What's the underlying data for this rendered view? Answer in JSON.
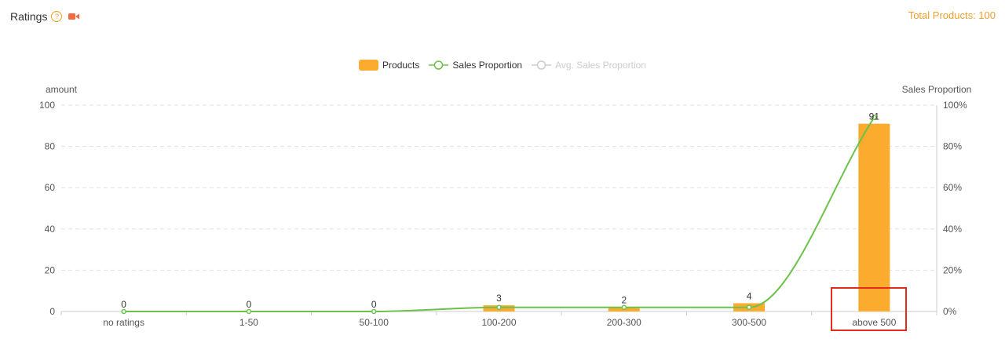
{
  "header": {
    "title": "Ratings",
    "help_icon": "question-circle-icon",
    "help_glyph": "?",
    "video_icon": "video-camera-icon",
    "total_label": "Total Products: 100"
  },
  "colors": {
    "bar": "#fbab2e",
    "line": "#6cc24a",
    "avg_line": "#cccccc",
    "accent": "#f0a030",
    "highlight": "#e32b1e"
  },
  "legend": [
    {
      "label": "Products",
      "kind": "bar",
      "active": true
    },
    {
      "label": "Sales Proportion",
      "kind": "line",
      "active": true
    },
    {
      "label": "Avg. Sales Proportion",
      "kind": "line",
      "active": false
    }
  ],
  "chart_data": {
    "type": "bar",
    "categories": [
      "no ratings",
      "1-50",
      "50-100",
      "100-200",
      "200-300",
      "300-500",
      "above 500"
    ],
    "series": [
      {
        "name": "Products",
        "type": "bar",
        "axis": "left",
        "values": [
          0,
          0,
          0,
          3,
          2,
          4,
          91
        ]
      },
      {
        "name": "Sales Proportion",
        "type": "line",
        "axis": "right",
        "smooth": true,
        "values": [
          0,
          0,
          0,
          2,
          2,
          2,
          94
        ]
      }
    ],
    "ylabel": "amount",
    "ylabel_right": "Sales Proportion",
    "ylim": [
      0,
      100
    ],
    "yticks": [
      "0",
      "20",
      "40",
      "60",
      "80",
      "100"
    ],
    "ylim_right": [
      0,
      100
    ],
    "yticks_right": [
      "0%",
      "20%",
      "40%",
      "60%",
      "80%",
      "100%"
    ],
    "grid": true,
    "legend_position": "top-center",
    "highlighted_category": "above 500"
  }
}
